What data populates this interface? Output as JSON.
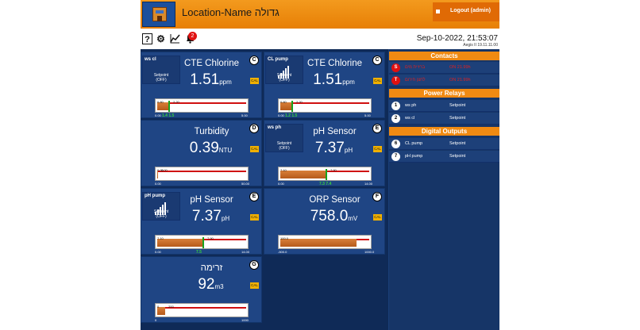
{
  "header": {
    "title": "Location-Name גדולה",
    "logout_label": "Logout (admin)"
  },
  "toolbar": {
    "help_glyph": "?",
    "notification_count": "2",
    "datetime": "Sep-10-2022, 21:53:07",
    "version": "Aegis II 19.11.11.00"
  },
  "tiles": [
    {
      "letter": "C",
      "name": "CTE Chlorine",
      "value": "1.51",
      "unit": "ppm",
      "cal": "CAL",
      "badge_title": "ws cl",
      "badge_setpoint": "Setpoint",
      "badge_state": "(OFF)",
      "limit_low": "0.80",
      "limit_high": "2.20",
      "range_min": "0.00",
      "range_max": "5.00",
      "fill_percent": 14,
      "marker_label": "1.4  1.5"
    },
    {
      "letter": "C",
      "name": "CTE Chlorine",
      "value": "1.51",
      "unit": "ppm",
      "cal": "CAL",
      "badge_title": "CL pump",
      "badge_setpoint": "Setpoint",
      "badge_state": "(OFF)",
      "limit_low": "0.80",
      "limit_high": "2.20",
      "range_min": "0.00",
      "range_max": "5.00",
      "fill_percent": 14,
      "marker_label": "1.2  1.5"
    },
    {
      "letter": "D",
      "name": "Turbidity",
      "value": "0.39",
      "unit": "NTU",
      "cal": "CAL",
      "limit_low": "0.00",
      "limit_high": "1.00",
      "range_min": "0.00",
      "range_max": "50.00",
      "fill_percent": 1,
      "marker_label": ""
    },
    {
      "letter": "E",
      "name": "pH Sensor",
      "value": "7.37",
      "unit": "pH",
      "cal": "CAL",
      "badge_title": "ws ph",
      "badge_setpoint": "Setpoint",
      "badge_state": "(OFF)",
      "limit_low": "7.10",
      "limit_high": "7.90",
      "range_min": "0.00",
      "range_max": "14.00",
      "fill_percent": 52,
      "marker_label": "7.3  7.4"
    },
    {
      "letter": "E",
      "name": "pH Sensor",
      "value": "7.37",
      "unit": "pH",
      "cal": "CAL",
      "badge_title": "pH pump",
      "badge_setpoint": "Setpoint",
      "badge_state": "(OFF)",
      "limit_low": "7.10",
      "limit_high": "7.90",
      "range_min": "0.00",
      "range_max": "14.00",
      "fill_percent": 52,
      "marker_label": "7.5"
    },
    {
      "letter": "F",
      "name": "ORP Sensor",
      "value": "758.0",
      "unit": "mV",
      "cal": "CAL",
      "limit_low": "100.0",
      "limit_high": "",
      "range_min": "-500.0",
      "range_max": "1000.0",
      "fill_percent": 84,
      "marker_label": ""
    },
    {
      "letter": "G",
      "name": "זרימה",
      "value": "92",
      "unit": "m3",
      "cal": "CAL",
      "limit_low": "0",
      "limit_high": "200",
      "range_min": "0",
      "range_max": "1000",
      "fill_percent": 9,
      "marker_label": ""
    }
  ],
  "panel": {
    "contacts_title": "Contacts",
    "contacts": [
      {
        "id": "S",
        "name": "ברזיית מים",
        "state": "ON 21.99h"
      },
      {
        "id": "T",
        "name": "לחצן חירום",
        "state": "ON 21.99h"
      }
    ],
    "relays_title": "Power Relays",
    "relays": [
      {
        "id": "1",
        "name": "ws ph",
        "state": "Setpoint"
      },
      {
        "id": "2",
        "name": "ws cl",
        "state": "Setpoint"
      }
    ],
    "outputs_title": "Digital Outputs",
    "outputs": [
      {
        "id": "6",
        "name": "CL pump",
        "state": "Setpoint"
      },
      {
        "id": "7",
        "name": "pH pump",
        "state": "Setpoint"
      }
    ]
  },
  "colors": {
    "header": "#f08a12",
    "background": "#1a3f78",
    "alarm": "#e01010"
  }
}
